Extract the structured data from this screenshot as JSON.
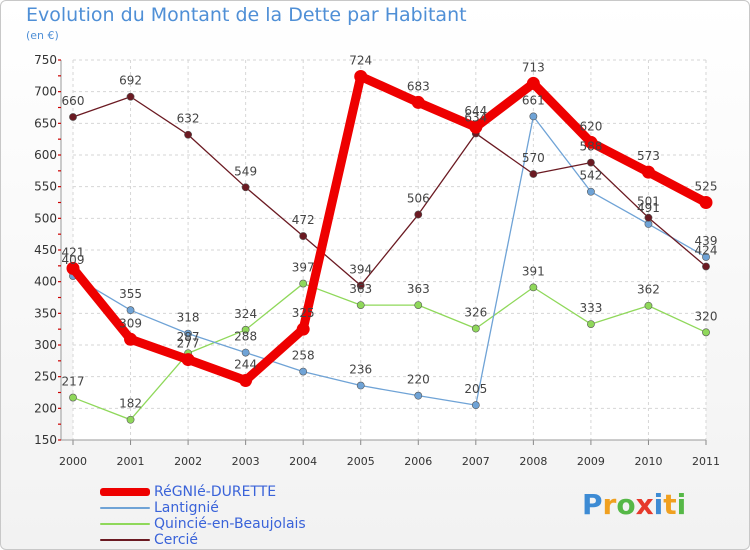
{
  "chart_data": {
    "type": "line",
    "title": "Evolution du Montant de la Dette par Habitant",
    "subtitle": "(en €)",
    "categories": [
      "2000",
      "2001",
      "2002",
      "2003",
      "2004",
      "2005",
      "2006",
      "2007",
      "2008",
      "2009",
      "2010",
      "2011"
    ],
    "yticks": [
      150,
      200,
      250,
      300,
      350,
      400,
      450,
      500,
      550,
      600,
      650,
      700,
      750
    ],
    "ylim": [
      150,
      750
    ],
    "grid": true,
    "legend_position": "bottom-left",
    "series": [
      {
        "name": "RéGNIé-DURETTE",
        "color": "#ee0000",
        "values": [
          421,
          309,
          277,
          244,
          325,
          724,
          683,
          644,
          713,
          620,
          573,
          525
        ]
      },
      {
        "name": "Lantignié",
        "color": "#6fa3d6",
        "values": [
          409,
          355,
          318,
          288,
          258,
          236,
          220,
          205,
          661,
          542,
          491,
          439
        ]
      },
      {
        "name": "Quincié-en-Beaujolais",
        "color": "#8fd85a",
        "values": [
          217,
          182,
          287,
          324,
          397,
          363,
          363,
          326,
          391,
          333,
          362,
          320
        ]
      },
      {
        "name": "Cercié",
        "color": "#6b1a22",
        "values": [
          660,
          692,
          632,
          549,
          472,
          394,
          506,
          634,
          570,
          588,
          501,
          424
        ]
      }
    ]
  },
  "brand": {
    "letters": [
      "P",
      "r",
      "o",
      "x",
      "i",
      "t",
      "i"
    ],
    "colors": [
      "#3d8bd4",
      "#f0a020",
      "#56b847",
      "#e6392b",
      "#3d8bd4",
      "#f0a020",
      "#56b847"
    ]
  }
}
